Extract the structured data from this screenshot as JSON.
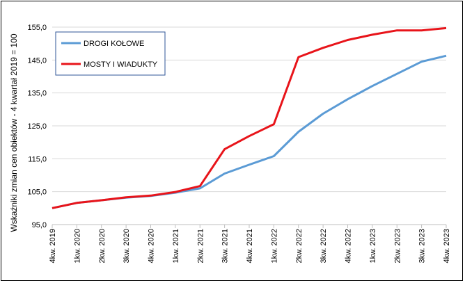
{
  "chart_data": {
    "type": "line",
    "ylabel": "Wskaźniki zmian cen obiektów - 4 kwartał 2019 = 100",
    "ylim": [
      95,
      155
    ],
    "yticks": [
      95,
      105,
      115,
      125,
      135,
      145,
      155
    ],
    "yticks_labels": [
      "95,0",
      "105,0",
      "115,0",
      "125,0",
      "135,0",
      "145,0",
      "155,0"
    ],
    "grid": true,
    "legend_position": "top-left",
    "categories": [
      "4kw. 2019",
      "1kw. 2020",
      "2kw. 2020",
      "3kw. 2020",
      "4kw. 2020",
      "1kw. 2021",
      "2kw. 2021",
      "3kw. 2021",
      "4kw. 2021",
      "1kw. 2022",
      "2kw. 2022",
      "3kw. 2022",
      "4kw. 2022",
      "1kw. 2023",
      "2kw. 2023",
      "3kw. 2023",
      "4kw. 2023"
    ],
    "series": [
      {
        "name": "DROGI KOŁOWE",
        "color": "#5B9BD5",
        "values": [
          100.0,
          101.6,
          102.4,
          103.2,
          103.7,
          104.7,
          106.0,
          110.5,
          113.2,
          115.8,
          123.2,
          128.7,
          133.1,
          137.1,
          140.8,
          144.5,
          146.3
        ]
      },
      {
        "name": "MOSTY I WIADUKTY",
        "color": "#E8141A",
        "values": [
          100.0,
          101.6,
          102.4,
          103.3,
          103.8,
          104.9,
          106.7,
          117.9,
          121.9,
          125.5,
          145.9,
          148.7,
          151.1,
          152.7,
          154.0,
          154.0,
          154.7
        ]
      }
    ]
  }
}
